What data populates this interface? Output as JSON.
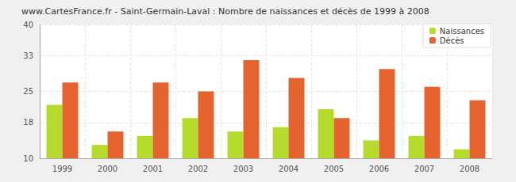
{
  "chart_data": {
    "type": "bar",
    "title": "www.CartesFrance.fr - Saint-Germain-Laval : Nombre de naissances et décès de 1999 à 2008",
    "categories": [
      "1999",
      "2000",
      "2001",
      "2002",
      "2003",
      "2004",
      "2005",
      "2006",
      "2007",
      "2008"
    ],
    "series": [
      {
        "name": "Naissances",
        "color": "#b5dc2c",
        "values": [
          22,
          13,
          15,
          19,
          16,
          17,
          21,
          14,
          15,
          12
        ]
      },
      {
        "name": "Décès",
        "color": "#e4632f",
        "values": [
          27,
          16,
          27,
          25,
          32,
          28,
          19,
          30,
          26,
          23
        ]
      }
    ],
    "ylim": [
      10,
      40
    ],
    "yticks": [
      10,
      18,
      25,
      33,
      40
    ],
    "grid": true,
    "legend": "top-right"
  }
}
